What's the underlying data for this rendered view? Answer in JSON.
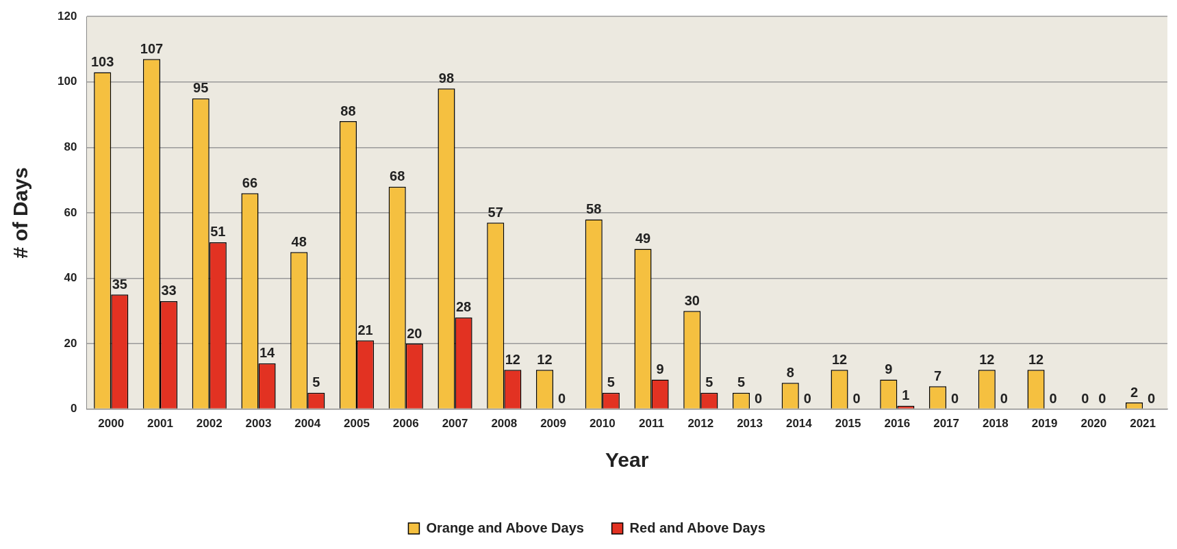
{
  "chart_data": {
    "type": "bar",
    "xlabel": "Year",
    "ylabel": "# of Days",
    "categories": [
      "2000",
      "2001",
      "2002",
      "2003",
      "2004",
      "2005",
      "2006",
      "2007",
      "2008",
      "2009",
      "2010",
      "2011",
      "2012",
      "2013",
      "2014",
      "2015",
      "2016",
      "2017",
      "2018",
      "2019",
      "2020",
      "2021"
    ],
    "series": [
      {
        "name": "Orange and Above Days",
        "color": "#f5c040",
        "values": [
          103,
          107,
          95,
          66,
          48,
          88,
          68,
          98,
          57,
          12,
          58,
          49,
          30,
          5,
          8,
          12,
          9,
          7,
          12,
          12,
          0,
          2
        ]
      },
      {
        "name": "Red and Above Days",
        "color": "#e23222",
        "values": [
          35,
          33,
          51,
          14,
          5,
          21,
          20,
          28,
          12,
          0,
          5,
          9,
          5,
          0,
          0,
          0,
          1,
          0,
          0,
          0,
          0,
          0
        ]
      }
    ],
    "ylim": [
      0,
      120
    ],
    "yticks": [
      0,
      20,
      40,
      60,
      80,
      100,
      120
    ],
    "grid": "y",
    "legend": "bottom",
    "data_labels": true
  }
}
